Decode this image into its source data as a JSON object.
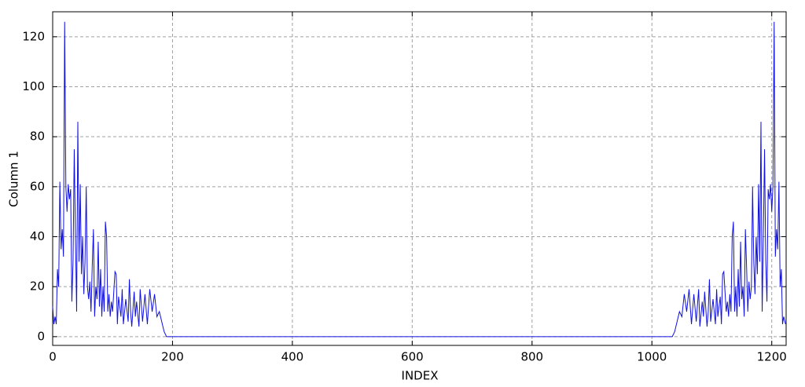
{
  "chart_data": {
    "type": "line",
    "x_label": "INDEX",
    "y_label": "Column 1",
    "xlim": [
      0,
      1224
    ],
    "ylim": [
      -3.5,
      130
    ],
    "xticks": [
      0,
      200,
      400,
      600,
      800,
      1000,
      1200
    ],
    "yticks": [
      0,
      20,
      40,
      60,
      80,
      100,
      120
    ],
    "grid": true,
    "series": [
      {
        "name": "Column 1",
        "color": "#1010e0",
        "x": [
          0,
          2,
          4,
          6,
          8,
          10,
          12,
          14,
          16,
          18,
          20,
          22,
          24,
          26,
          28,
          30,
          32,
          34,
          36,
          38,
          40,
          42,
          44,
          46,
          48,
          50,
          52,
          54,
          56,
          58,
          60,
          62,
          64,
          66,
          68,
          70,
          72,
          74,
          76,
          78,
          80,
          82,
          84,
          86,
          88,
          90,
          92,
          94,
          96,
          98,
          100,
          104,
          106,
          108,
          110,
          114,
          116,
          118,
          122,
          126,
          128,
          130,
          132,
          136,
          138,
          140,
          144,
          146,
          150,
          154,
          158,
          162,
          166,
          170,
          174,
          178,
          182,
          186,
          190,
          1034,
          1038,
          1042,
          1046,
          1050,
          1054,
          1058,
          1062,
          1066,
          1070,
          1074,
          1078,
          1080,
          1084,
          1086,
          1088,
          1092,
          1094,
          1096,
          1098,
          1102,
          1106,
          1108,
          1110,
          1114,
          1116,
          1118,
          1120,
          1124,
          1126,
          1128,
          1130,
          1132,
          1134,
          1136,
          1138,
          1140,
          1142,
          1144,
          1146,
          1148,
          1150,
          1152,
          1154,
          1156,
          1158,
          1160,
          1162,
          1164,
          1166,
          1168,
          1170,
          1172,
          1174,
          1176,
          1178,
          1180,
          1182,
          1184,
          1186,
          1188,
          1190,
          1192,
          1194,
          1196,
          1198,
          1200,
          1202,
          1204,
          1206,
          1208,
          1210,
          1212,
          1214,
          1216,
          1218,
          1220,
          1223
        ],
        "values": [
          12,
          5,
          8,
          5,
          27,
          20,
          62,
          35,
          43,
          32,
          126,
          60,
          50,
          61,
          55,
          59,
          14,
          30,
          75,
          40,
          10,
          86,
          30,
          61,
          25,
          40,
          17,
          30,
          60,
          20,
          15,
          22,
          10,
          28,
          43,
          8,
          20,
          15,
          38,
          12,
          27,
          8,
          20,
          10,
          46,
          40,
          10,
          17,
          8,
          14,
          10,
          26,
          25,
          5,
          16,
          8,
          19,
          5,
          15,
          6,
          23,
          10,
          4,
          18,
          8,
          14,
          4,
          19,
          6,
          17,
          5,
          19,
          10,
          17,
          8,
          10,
          6,
          2,
          0,
          0,
          2,
          6,
          10,
          8,
          17,
          10,
          19,
          5,
          17,
          6,
          19,
          4,
          14,
          8,
          18,
          4,
          10,
          23,
          6,
          15,
          5,
          19,
          8,
          16,
          5,
          25,
          26,
          10,
          14,
          8,
          17,
          10,
          40,
          46,
          10,
          20,
          8,
          27,
          12,
          38,
          15,
          20,
          8,
          43,
          28,
          10,
          22,
          15,
          20,
          60,
          30,
          17,
          40,
          25,
          61,
          30,
          86,
          10,
          40,
          75,
          30,
          14,
          59,
          55,
          61,
          50,
          60,
          126,
          32,
          43,
          35,
          62,
          20,
          27,
          5,
          8,
          5
        ]
      }
    ]
  }
}
